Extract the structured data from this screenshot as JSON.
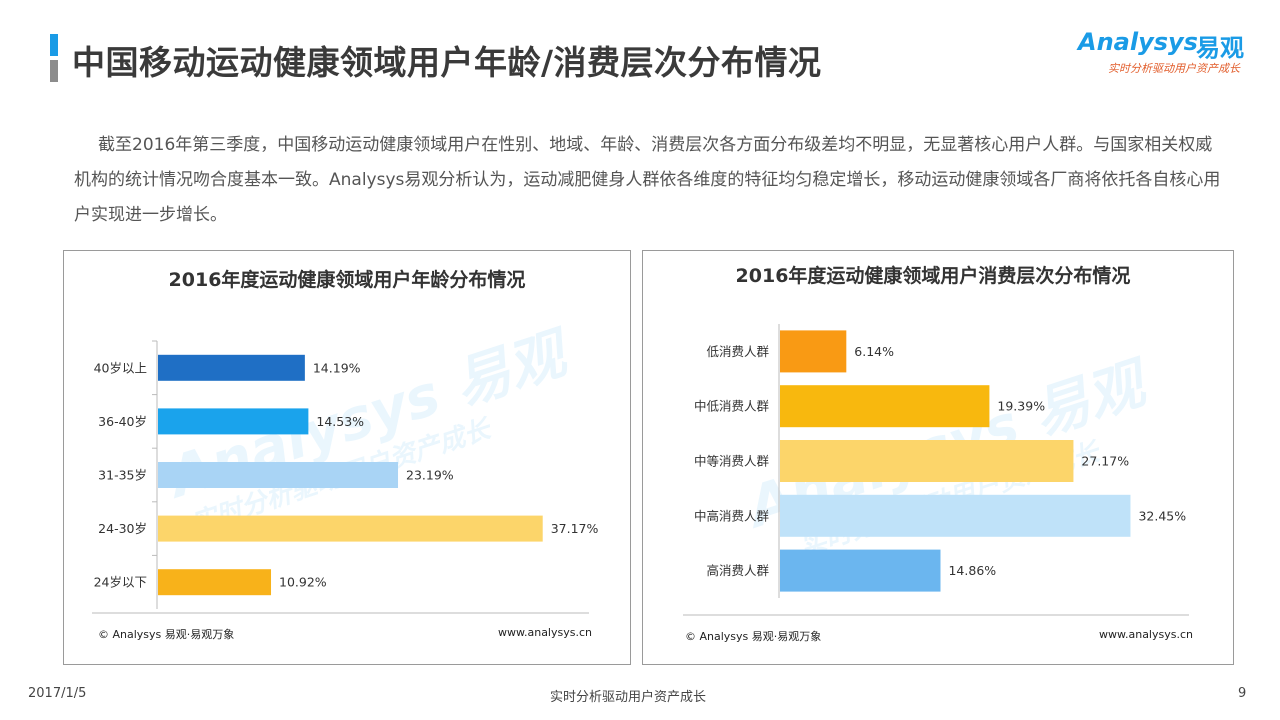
{
  "header": {
    "title": "中国移动运动健康领域用户年龄/消费层次分布情况",
    "logo_name": "Analysys",
    "logo_cn": "易观",
    "logo_tagline": "实时分析驱动用户资产成长"
  },
  "intro": "截至2016年第三季度，中国移动运动健康领域用户在性别、地域、年龄、消费层次各方面分布级差均不明显，无显著核心用户人群。与国家相关权威机构的统计情况吻合度基本一致。Analysys易观分析认为，运动减肥健身人群依各维度的特征均匀稳定增长，移动运动健康领域各厂商将依托各自核心用户实现进一步增长。",
  "watermark": {
    "name": "Analysys 易观",
    "tagline": "实时分析驱动用户资产成长"
  },
  "chart_data": [
    {
      "type": "bar",
      "orientation": "horizontal",
      "title": "2016年度运动健康领域用户年龄分布情况",
      "categories": [
        "40岁以上",
        "36-40岁",
        "31-35岁",
        "24-30岁",
        "24岁以下"
      ],
      "values": [
        14.19,
        14.53,
        23.19,
        37.17,
        10.92
      ],
      "labels": [
        "14.19%",
        "14.53%",
        "23.19%",
        "37.17%",
        "10.92%"
      ],
      "colors": [
        "#1f6fc5",
        "#1aa3ec",
        "#a9d4f5",
        "#fcd56a",
        "#f8b21a"
      ],
      "source": "© Analysys 易观·易观万象",
      "url": "www.analysys.cn"
    },
    {
      "type": "bar",
      "orientation": "horizontal",
      "title": "2016年度运动健康领域用户消费层次分布情况",
      "categories": [
        "低消费人群",
        "中低消费人群",
        "中等消费人群",
        "中高消费人群",
        "高消费人群"
      ],
      "values": [
        6.14,
        19.39,
        27.17,
        32.45,
        14.86
      ],
      "labels": [
        "6.14%",
        "19.39%",
        "27.17%",
        "32.45%",
        "14.86%"
      ],
      "colors": [
        "#f99a14",
        "#f8b80e",
        "#fcd56a",
        "#bfe2f9",
        "#6bb6ef"
      ],
      "source": "© Analysys 易观·易观万象",
      "url": "www.analysys.cn"
    }
  ],
  "footer": {
    "date": "2017/1/5",
    "tagline": "实时分析驱动用户资产成长",
    "page": "9"
  }
}
